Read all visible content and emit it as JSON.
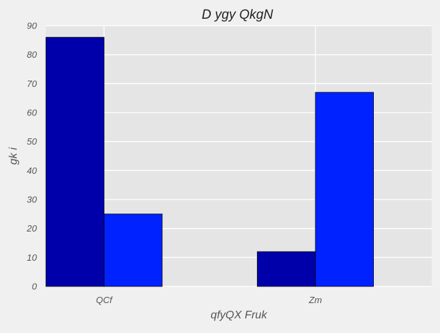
{
  "chart_data": {
    "type": "bar",
    "title": "D ygy QkgN",
    "xlabel": "qfyQX Fruk",
    "ylabel": "gk i",
    "categories": [
      "QCf",
      "Zm"
    ],
    "series": [
      {
        "values": [
          86,
          12
        ],
        "color": "#0000aa"
      },
      {
        "values": [
          25,
          67
        ],
        "color": "#0022ff"
      }
    ],
    "ylim": [
      0,
      90
    ],
    "yticks": [
      0,
      10,
      20,
      30,
      40,
      50,
      60,
      70,
      80,
      90
    ],
    "grid": true,
    "legend": "none",
    "colors": {
      "plot_background": "#e5e5e5",
      "page_background": "#f0f0f0",
      "grid": "#ffffff",
      "bar_edge": "#000000"
    }
  }
}
